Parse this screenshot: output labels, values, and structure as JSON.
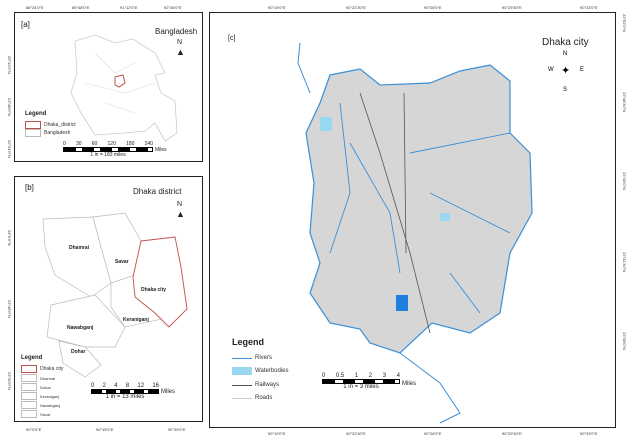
{
  "panel_a": {
    "tag": "[a]",
    "title": "Bangladesh",
    "north": "N",
    "top_ticks": [
      "88°24'0\"E",
      "89°48'0\"E",
      "91°12'0\"E",
      "92°36'0\"E"
    ],
    "left_ticks": [
      "25°12'0\"N",
      "23°48'0\"N",
      "22°24'0\"N"
    ],
    "legend": {
      "title": "Legend",
      "items": [
        {
          "label": "Dhaka_district",
          "color": "#c0504d"
        },
        {
          "label": "Bangladesh",
          "color": "#cccccc"
        }
      ]
    },
    "scale": {
      "ticks": [
        "0",
        "30",
        "60",
        "120",
        "180",
        "240"
      ],
      "unit": "Miles",
      "ratio": "1 in = 183 miles"
    }
  },
  "panel_b": {
    "tag": "[b]",
    "title": "Dhaka district",
    "north": "N",
    "areas": [
      "Dhamrai",
      "Savar",
      "Dhaka city",
      "Keraniganj",
      "Nawabganj",
      "Dohar"
    ],
    "bottom_ticks": [
      "90°0'0\"E",
      "90°15'0\"E",
      "90°30'0\"E"
    ],
    "left_ticks": [
      "24°0'0\"N",
      "23°45'0\"N",
      "23°30'0\"N"
    ],
    "legend": {
      "title": "Legend",
      "items": [
        {
          "label": "Dhaka city",
          "color": "#c0504d"
        },
        {
          "label": "Dhamrai",
          "color": "#cccccc"
        },
        {
          "label": "Dohar",
          "color": "#cccccc"
        },
        {
          "label": "Keraniganj",
          "color": "#cccccc"
        },
        {
          "label": "Nawabganj",
          "color": "#cccccc"
        },
        {
          "label": "Savar",
          "color": "#cccccc"
        }
      ]
    },
    "scale": {
      "ticks": [
        "0",
        "2",
        "4",
        "8",
        "12",
        "16"
      ],
      "unit": "Miles",
      "ratio": "1 in = 13 miles"
    }
  },
  "panel_c": {
    "tag": "[c]",
    "title": "Dhaka city",
    "compass": {
      "n": "N",
      "s": "S",
      "e": "E",
      "w": "W"
    },
    "top_ticks": [
      "90°19'0\"E",
      "90°22'30\"E",
      "90°26'0\"E",
      "90°29'30\"E",
      "90°33'0\"E"
    ],
    "bottom_ticks": [
      "90°19'0\"E",
      "90°22'30\"E",
      "90°26'0\"E",
      "90°29'30\"E",
      "90°33'0\"E"
    ],
    "right_ticks": [
      "23°52'0\"N",
      "23°48'30\"N",
      "23°45'0\"N",
      "23°41'30\"N",
      "23°38'0\"N"
    ],
    "legend": {
      "title": "Legend",
      "items": [
        {
          "label": "Rivers",
          "color": "#3a8fd6"
        },
        {
          "label": "Waterbodies",
          "color": "#9ad8f0"
        },
        {
          "label": "Railways",
          "color": "#555555"
        },
        {
          "label": "Roads",
          "color": "#cccccc"
        }
      ]
    },
    "scale": {
      "ticks": [
        "0",
        "0.5",
        "1",
        "2",
        "3",
        "4"
      ],
      "unit": "Miles",
      "ratio": "1 in = 3 miles"
    }
  }
}
